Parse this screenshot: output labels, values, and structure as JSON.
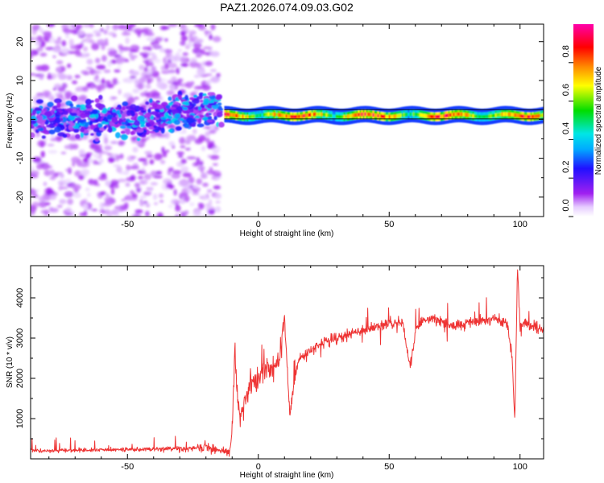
{
  "figure": {
    "title": "PAZ1.2026.074.09.03.G02"
  },
  "chart_data": [
    {
      "type": "heatmap",
      "title": "PAZ1.2026.074.09.03.G02",
      "xlabel": "Height of straight line (km)",
      "ylabel": "Frequency (Hz)",
      "xlim": [
        -87,
        109
      ],
      "ylim": [
        -25,
        24.5
      ],
      "xticks": [
        -50,
        0,
        50,
        100
      ],
      "yticks": [
        -20,
        -10,
        0,
        10,
        20
      ],
      "xtick_labels": [
        "-50",
        "0",
        "50",
        "100"
      ],
      "ytick_labels": [
        "-20",
        "-10",
        "0",
        "10",
        "20"
      ],
      "colorbar": {
        "label": "Normalized spectral amplitude",
        "range": [
          0,
          1
        ],
        "ticks": [
          0.0,
          0.2,
          0.4,
          0.6,
          0.8
        ],
        "tick_labels": [
          "0.0",
          "0.2",
          "0.4",
          "0.6",
          "0.8"
        ],
        "colormap": "rainbow (white-purple-blue-cyan-green-yellow-red-magenta)"
      },
      "features": {
        "noise_region_x": [
          -87,
          -15
        ],
        "noise_core_frequency_hz": 0,
        "noise_core_band_width_hz": 8,
        "signal_start_x": -13,
        "signal_frequency_hz": 1,
        "signal_band_width_hz": 1.5,
        "signal_peak_amplitude": 0.85
      },
      "colors": {
        "signal_peak": "#ff2020",
        "noise": "#8800ff"
      }
    },
    {
      "type": "line",
      "xlabel": "Height of straight line (km)",
      "ylabel": "SNR (10 * v/v)",
      "xlim": [
        -87,
        109
      ],
      "ylim": [
        0,
        4800
      ],
      "xticks": [
        -50,
        0,
        50,
        100
      ],
      "yticks": [
        1000,
        2000,
        3000,
        4000
      ],
      "xtick_labels": [
        "-50",
        "0",
        "50",
        "100"
      ],
      "ytick_labels": [
        "1000",
        "2000",
        "3000",
        "4000"
      ],
      "series": [
        {
          "name": "SNR",
          "color": "#ee3333",
          "x": [
            -87,
            -80,
            -70,
            -60,
            -50,
            -40,
            -30,
            -20,
            -15,
            -11,
            -10,
            -9,
            -8,
            -7,
            -5,
            -3,
            -1,
            0,
            2,
            5,
            8,
            10,
            12,
            15,
            20,
            25,
            30,
            35,
            40,
            45,
            50,
            55,
            58,
            60,
            62,
            65,
            70,
            75,
            80,
            85,
            90,
            95,
            97,
            98,
            99,
            100,
            102,
            105,
            108,
            109
          ],
          "values": [
            200,
            200,
            210,
            220,
            230,
            240,
            250,
            280,
            200,
            170,
            600,
            2700,
            1500,
            1100,
            1400,
            1900,
            2000,
            2100,
            2200,
            2300,
            2400,
            3500,
            1100,
            2400,
            2700,
            2900,
            3000,
            3100,
            3200,
            3300,
            3400,
            3400,
            2300,
            3100,
            3400,
            3500,
            3400,
            3300,
            3400,
            3400,
            3500,
            3400,
            2500,
            900,
            4800,
            3300,
            3400,
            3300,
            3200,
            3200
          ]
        }
      ]
    }
  ]
}
